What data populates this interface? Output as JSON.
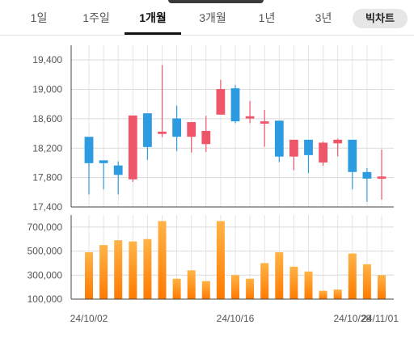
{
  "tabs": [
    {
      "label": "1일",
      "active": false
    },
    {
      "label": "1주일",
      "active": false
    },
    {
      "label": "1개월",
      "active": true
    },
    {
      "label": "3개월",
      "active": false
    },
    {
      "label": "1년",
      "active": false
    },
    {
      "label": "3년",
      "active": false
    }
  ],
  "toggle_label": "빅차트",
  "chart_data": [
    {
      "type": "candlestick",
      "title": "",
      "ylim": [
        17400,
        19600
      ],
      "yticks": [
        "19,400",
        "19,000",
        "18,600",
        "18,200",
        "17,800",
        "17,400"
      ],
      "ytick_values": [
        19400,
        19000,
        18600,
        18200,
        17800,
        17400
      ],
      "up_color": "#f0566a",
      "down_color": "#2d9be0",
      "candles": [
        {
          "open": 18350,
          "close": 18000,
          "high": 18350,
          "low": 17570
        },
        {
          "open": 18030,
          "close": 18000,
          "high": 18030,
          "low": 17640
        },
        {
          "open": 17960,
          "close": 17840,
          "high": 18020,
          "low": 17570
        },
        {
          "open": 17780,
          "close": 18640,
          "high": 18640,
          "low": 17740
        },
        {
          "open": 18670,
          "close": 18220,
          "high": 18670,
          "low": 18040
        },
        {
          "open": 18410,
          "close": 18420,
          "high": 19330,
          "low": 18350
        },
        {
          "open": 18600,
          "close": 18360,
          "high": 18780,
          "low": 18160
        },
        {
          "open": 18360,
          "close": 18550,
          "high": 18550,
          "low": 18140
        },
        {
          "open": 18260,
          "close": 18430,
          "high": 18640,
          "low": 18150
        },
        {
          "open": 18660,
          "close": 19000,
          "high": 19130,
          "low": 18660
        },
        {
          "open": 19010,
          "close": 18570,
          "high": 19060,
          "low": 18540
        },
        {
          "open": 18610,
          "close": 18630,
          "high": 18840,
          "low": 18540
        },
        {
          "open": 18540,
          "close": 18560,
          "high": 18720,
          "low": 18220
        },
        {
          "open": 18570,
          "close": 18090,
          "high": 18570,
          "low": 18010
        },
        {
          "open": 18090,
          "close": 18310,
          "high": 18310,
          "low": 17900
        },
        {
          "open": 18310,
          "close": 18110,
          "high": 18310,
          "low": 17860
        },
        {
          "open": 18010,
          "close": 18270,
          "high": 18290,
          "low": 17960
        },
        {
          "open": 18270,
          "close": 18310,
          "high": 18330,
          "low": 18090
        },
        {
          "open": 18310,
          "close": 17880,
          "high": 18310,
          "low": 17640
        },
        {
          "open": 17870,
          "close": 17790,
          "high": 17930,
          "low": 17470
        },
        {
          "open": 17790,
          "close": 17810,
          "high": 18180,
          "low": 17500
        }
      ]
    },
    {
      "type": "bar",
      "title": "",
      "ylim": [
        100000,
        800000
      ],
      "yticks": [
        "700,000",
        "500,000",
        "300,000",
        "100,000"
      ],
      "ytick_values": [
        700000,
        500000,
        300000,
        100000
      ],
      "bar_color_top": "#ffb347",
      "bar_color_bottom": "#ff7a00",
      "values": [
        490000,
        550000,
        590000,
        580000,
        600000,
        750000,
        270000,
        340000,
        250000,
        750000,
        300000,
        270000,
        400000,
        490000,
        370000,
        330000,
        170000,
        180000,
        480000,
        390000,
        300000
      ],
      "xtick_labels": [
        "24/10/02",
        "24/10/16",
        "24/10/28",
        "24/11/01"
      ],
      "xtick_indices": [
        0,
        10,
        18,
        20
      ]
    }
  ]
}
